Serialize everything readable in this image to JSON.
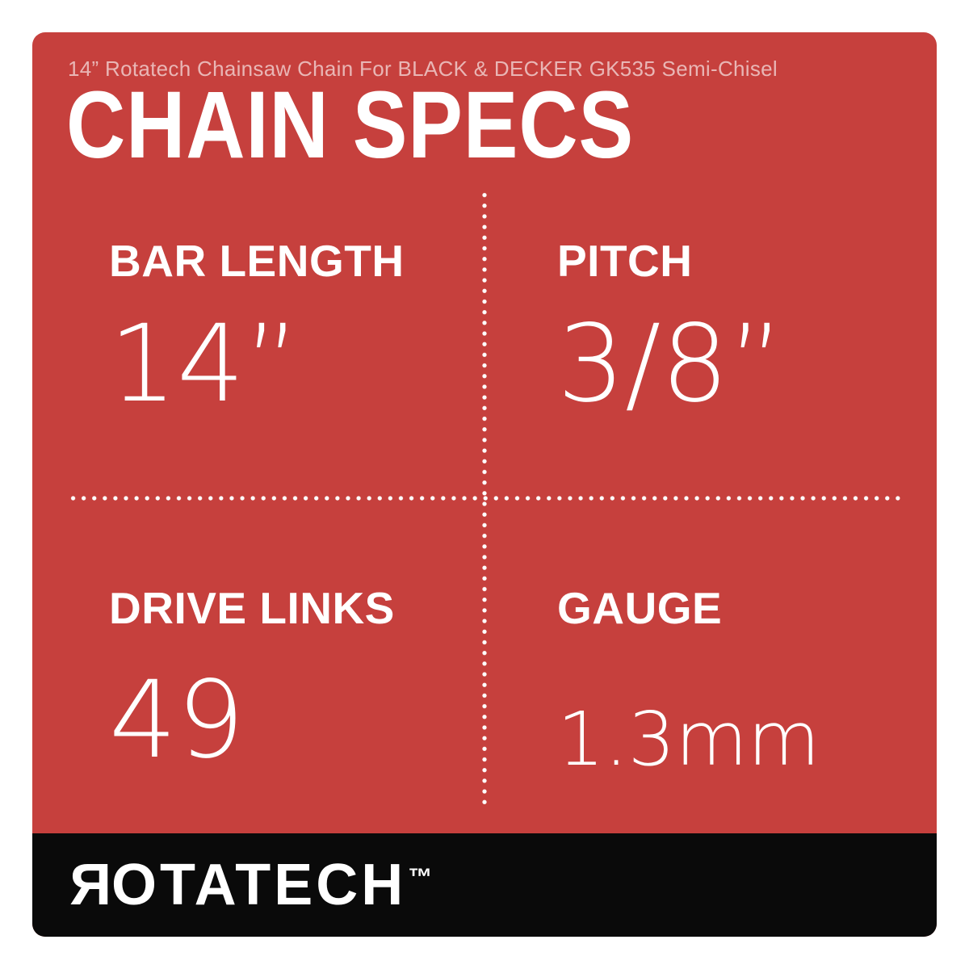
{
  "colors": {
    "page_background": "#ffffff",
    "panel_red": "#c6403d",
    "footer_black": "#0a0a0a",
    "text_primary": "#ffffff",
    "subtitle_text": "rgba(255,255,255,0.62)"
  },
  "header": {
    "subtitle": "14” Rotatech Chainsaw Chain For BLACK & DECKER GK535 Semi-Chisel",
    "title": "CHAIN SPECS"
  },
  "specs": [
    {
      "label": "BAR LENGTH",
      "value": "14”"
    },
    {
      "label": "PITCH",
      "value": "3/8”"
    },
    {
      "label": "DRIVE LINKS",
      "value": "49"
    },
    {
      "label": "GAUGE",
      "value": "1.3mm"
    }
  ],
  "footer": {
    "brand_first_letter": "R",
    "brand_rest": "OTATECH",
    "trademark": "™"
  }
}
